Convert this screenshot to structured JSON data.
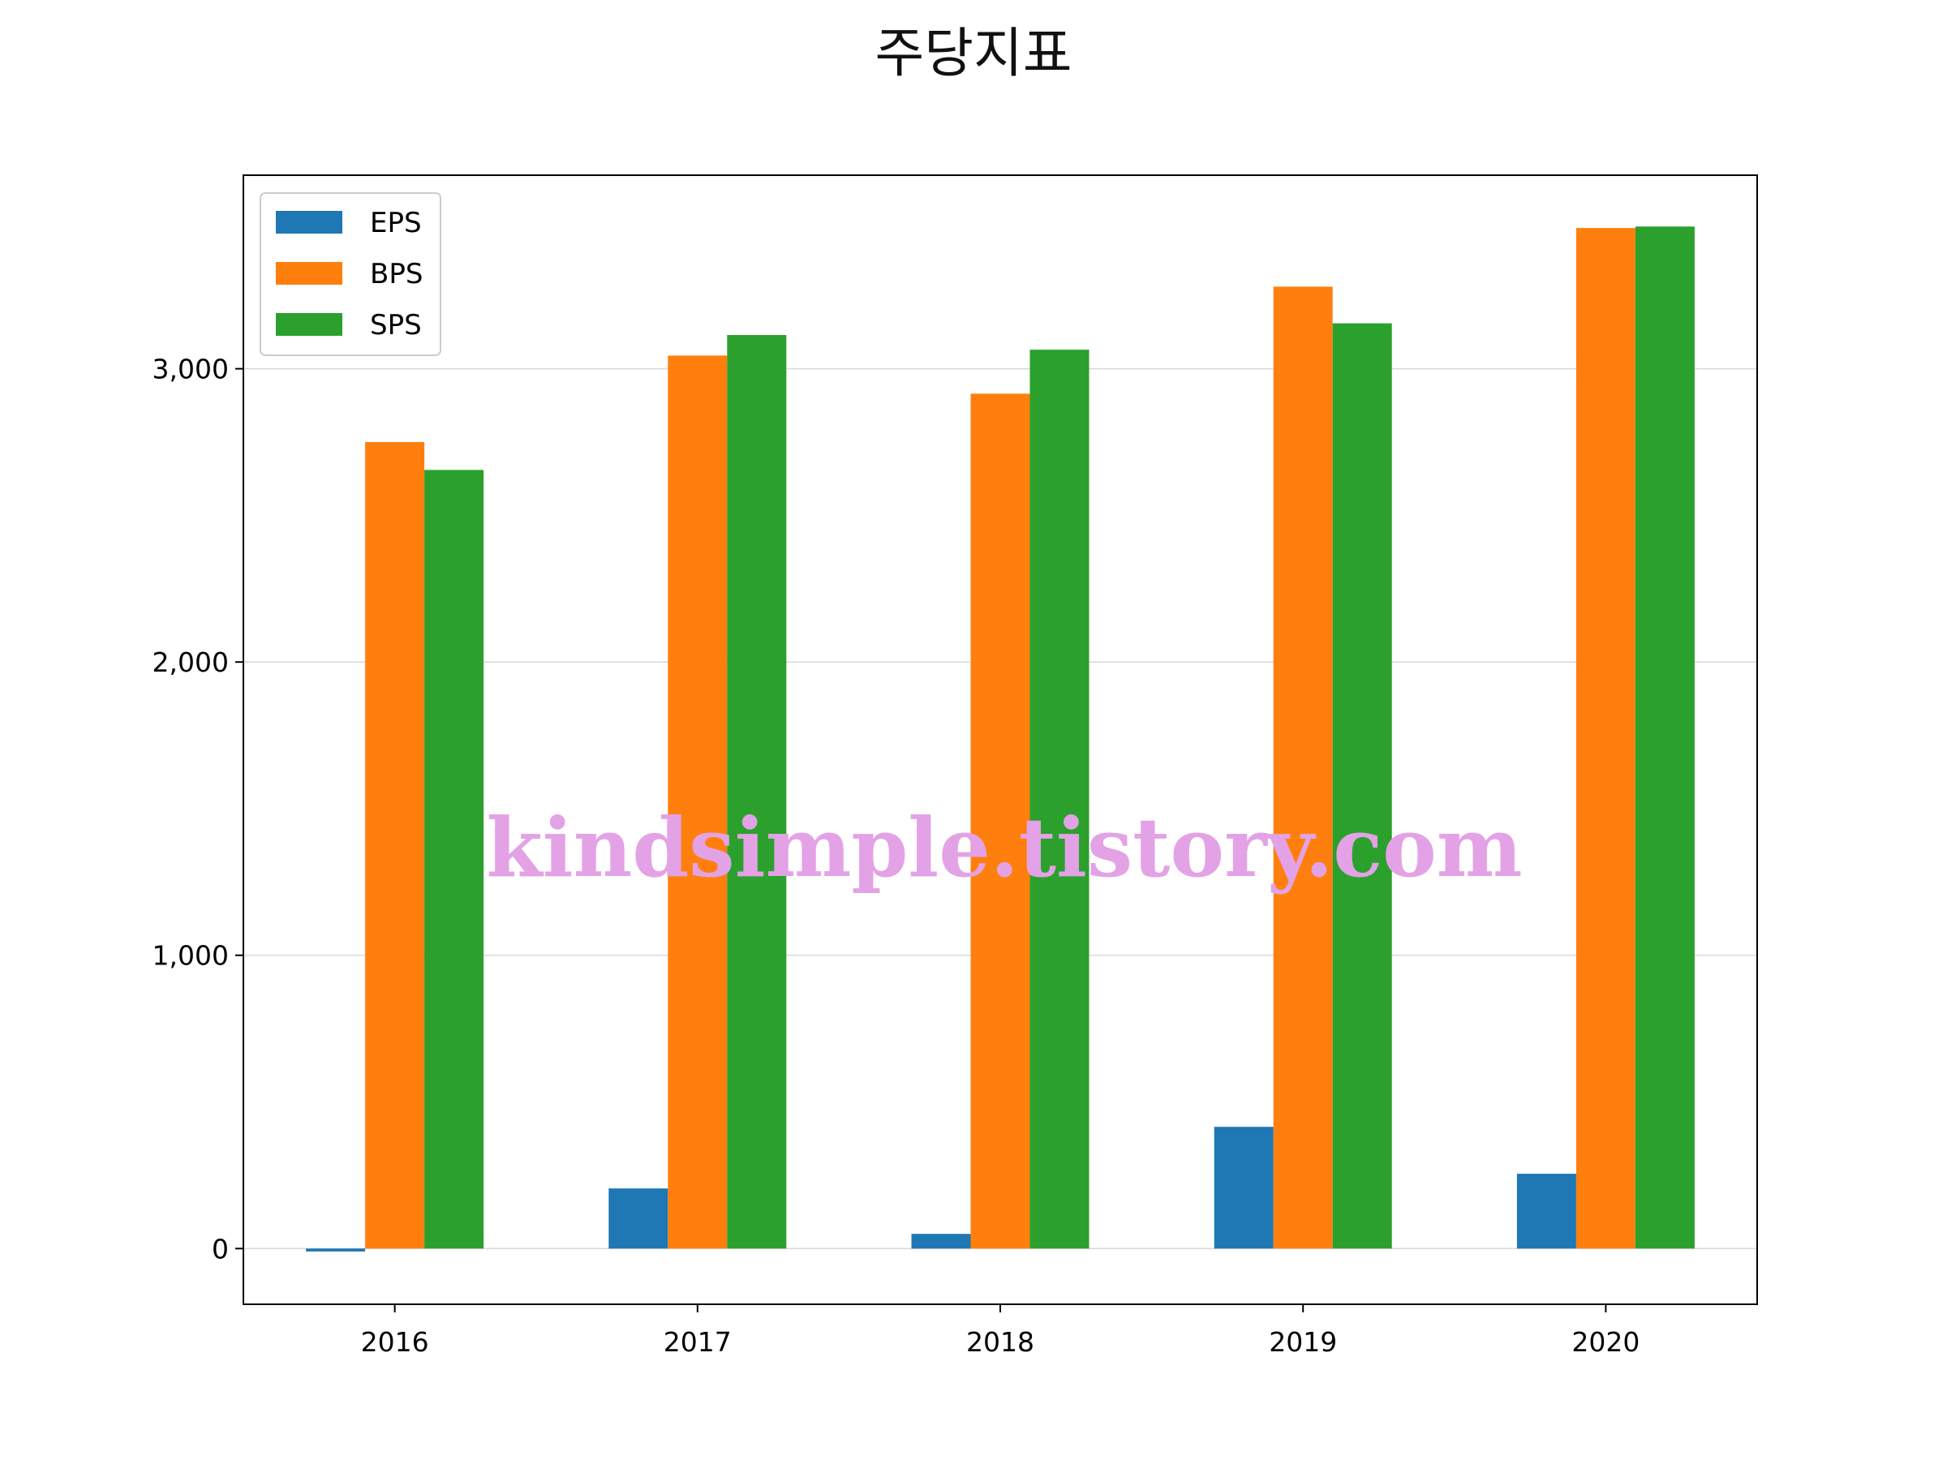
{
  "chart_data": {
    "type": "bar",
    "title": "주당지표",
    "xlabel": "",
    "ylabel": "",
    "categories": [
      "2016",
      "2017",
      "2018",
      "2019",
      "2020"
    ],
    "series": [
      {
        "name": "EPS",
        "values": [
          -10,
          205,
          50,
          415,
          255
        ],
        "color": "#1f77b4"
      },
      {
        "name": "BPS",
        "values": [
          2750,
          3045,
          2915,
          3280,
          3480
        ],
        "color": "#ff7f0e"
      },
      {
        "name": "SPS",
        "values": [
          2655,
          3115,
          3065,
          3155,
          3485
        ],
        "color": "#2ca02c"
      }
    ],
    "y_ticks": [
      0,
      1000,
      2000,
      3000
    ],
    "y_tick_labels": [
      "0",
      "1,000",
      "2,000",
      "3,000"
    ],
    "ylim": [
      -190,
      3660
    ],
    "grid": "y",
    "legend_position": "upper-left"
  },
  "watermark": "kindsimple.tistory.com"
}
